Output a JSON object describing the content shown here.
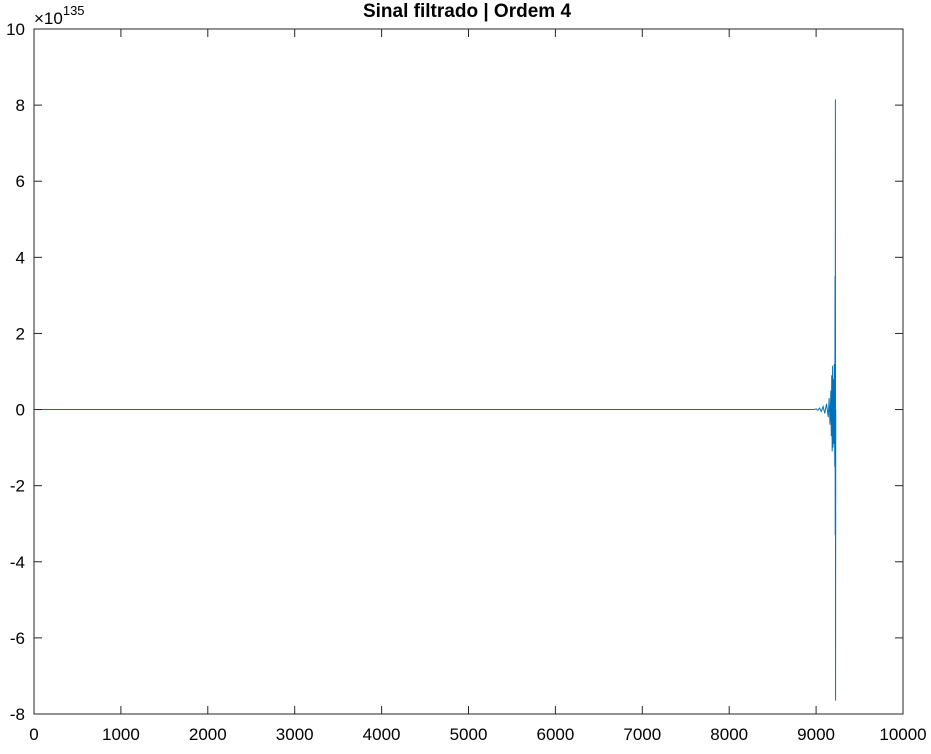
{
  "chart_data": {
    "type": "line",
    "title": "Sinal filtrado | Ordem 4",
    "xlabel": "",
    "ylabel": "",
    "xlim": [
      0,
      10000
    ],
    "ylim": [
      -8,
      10
    ],
    "y_exponent_label": {
      "base": "×10",
      "power": "135"
    },
    "xticks": [
      0,
      1000,
      2000,
      3000,
      4000,
      5000,
      6000,
      7000,
      8000,
      9000,
      10000
    ],
    "xtick_labels": [
      "0",
      "1000",
      "2000",
      "3000",
      "4000",
      "5000",
      "6000",
      "7000",
      "8000",
      "9000",
      "10000"
    ],
    "yticks": [
      -8,
      -6,
      -4,
      -2,
      0,
      2,
      4,
      6,
      8,
      10
    ],
    "ytick_labels": [
      "-8",
      "-6",
      "-4",
      "-2",
      "0",
      "2",
      "4",
      "6",
      "8",
      "10"
    ],
    "grid": false,
    "series": [
      {
        "color": "#0072BD",
        "x": [
          0,
          8980,
          9000,
          9020,
          9040,
          9060,
          9080,
          9100,
          9120,
          9140,
          9150,
          9160,
          9170,
          9175,
          9180,
          9185,
          9190,
          9195,
          9200,
          9205,
          9210,
          9215,
          9218,
          9220,
          9222,
          9224,
          9226
        ],
        "y": [
          0,
          0,
          0.02,
          -0.02,
          0.04,
          -0.05,
          0.08,
          -0.1,
          0.15,
          -0.2,
          0.3,
          -0.4,
          0.5,
          -0.7,
          0.9,
          -1.1,
          1.15,
          -1.0,
          0.8,
          -0.9,
          1.2,
          -1.5,
          3.5,
          -3.3,
          8.15,
          -7.65,
          0
        ]
      }
    ]
  }
}
